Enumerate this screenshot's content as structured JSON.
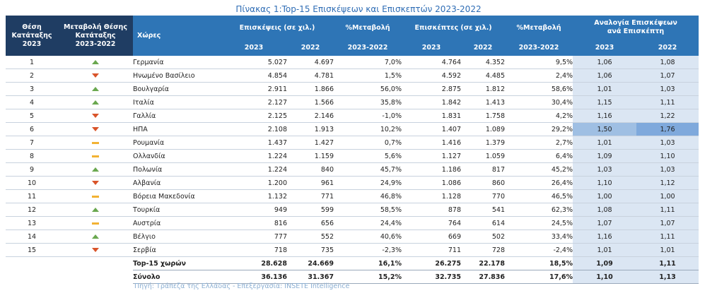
{
  "caption": "Πίνακας 1:Top-15 Επισκέψεων και Επισκεπτών 2023-2022",
  "headers": {
    "rank": "Θέση Κατάταξης 2023",
    "rank_change": "Μεταβολή Θέσης Κατάταξης 2023-2022",
    "country": "Χώρες",
    "visits": "Επισκέψεις (σε χιλ.)",
    "visits_pct": "%Μεταβολή",
    "visitors": "Επισκέπτες (σε χιλ.)",
    "visitors_pct": "%Μεταβολή",
    "ratio": "Αναλογία Επισκέψεων ανά Επισκέπτη",
    "y2023": "2023",
    "y2022": "2022",
    "period": "2023-2022"
  },
  "rows": [
    {
      "rank": "1",
      "trend": "up",
      "country": "Γερμανία",
      "v23": "5.027",
      "v22": "4.697",
      "vp": "7,0%",
      "p23": "4.764",
      "p22": "4.352",
      "pp": "9,5%",
      "r23": "1,06",
      "r22": "1,08"
    },
    {
      "rank": "2",
      "trend": "down",
      "country": "Ηνωμένο Βασίλειο",
      "v23": "4.854",
      "v22": "4.781",
      "vp": "1,5%",
      "p23": "4.592",
      "p22": "4.485",
      "pp": "2,4%",
      "r23": "1,06",
      "r22": "1,07"
    },
    {
      "rank": "3",
      "trend": "up",
      "country": "Βουλγαρία",
      "v23": "2.911",
      "v22": "1.866",
      "vp": "56,0%",
      "p23": "2.875",
      "p22": "1.812",
      "pp": "58,6%",
      "r23": "1,01",
      "r22": "1,03"
    },
    {
      "rank": "4",
      "trend": "up",
      "country": "Ιταλία",
      "v23": "2.127",
      "v22": "1.566",
      "vp": "35,8%",
      "p23": "1.842",
      "p22": "1.413",
      "pp": "30,4%",
      "r23": "1,15",
      "r22": "1,11"
    },
    {
      "rank": "5",
      "trend": "down",
      "country": "Γαλλία",
      "v23": "2.125",
      "v22": "2.146",
      "vp": "-1,0%",
      "p23": "1.831",
      "p22": "1.758",
      "pp": "4,2%",
      "r23": "1,16",
      "r22": "1,22"
    },
    {
      "rank": "6",
      "trend": "down",
      "country": "ΗΠΑ",
      "v23": "2.108",
      "v22": "1.913",
      "vp": "10,2%",
      "p23": "1.407",
      "p22": "1.089",
      "pp": "29,2%",
      "r23": "1,50",
      "r22": "1,76"
    },
    {
      "rank": "7",
      "trend": "flat",
      "country": "Ρουμανία",
      "v23": "1.437",
      "v22": "1.427",
      "vp": "0,7%",
      "p23": "1.416",
      "p22": "1.379",
      "pp": "2,7%",
      "r23": "1,01",
      "r22": "1,03"
    },
    {
      "rank": "8",
      "trend": "flat",
      "country": "Ολλανδία",
      "v23": "1.224",
      "v22": "1.159",
      "vp": "5,6%",
      "p23": "1.127",
      "p22": "1.059",
      "pp": "6,4%",
      "r23": "1,09",
      "r22": "1,10"
    },
    {
      "rank": "9",
      "trend": "up",
      "country": "Πολωνία",
      "v23": "1.224",
      "v22": "840",
      "vp": "45,7%",
      "p23": "1.186",
      "p22": "817",
      "pp": "45,2%",
      "r23": "1,03",
      "r22": "1,03"
    },
    {
      "rank": "10",
      "trend": "down",
      "country": "Αλβανία",
      "v23": "1.200",
      "v22": "961",
      "vp": "24,9%",
      "p23": "1.086",
      "p22": "860",
      "pp": "26,4%",
      "r23": "1,10",
      "r22": "1,12"
    },
    {
      "rank": "11",
      "trend": "flat",
      "country": "Βόρεια Μακεδονία",
      "v23": "1.132",
      "v22": "771",
      "vp": "46,8%",
      "p23": "1.128",
      "p22": "770",
      "pp": "46,5%",
      "r23": "1,00",
      "r22": "1,00"
    },
    {
      "rank": "12",
      "trend": "up",
      "country": "Τουρκία",
      "v23": "949",
      "v22": "599",
      "vp": "58,5%",
      "p23": "878",
      "p22": "541",
      "pp": "62,3%",
      "r23": "1,08",
      "r22": "1,11"
    },
    {
      "rank": "13",
      "trend": "flat",
      "country": "Αυστρία",
      "v23": "816",
      "v22": "656",
      "vp": "24,4%",
      "p23": "764",
      "p22": "614",
      "pp": "24,5%",
      "r23": "1,07",
      "r22": "1,07"
    },
    {
      "rank": "14",
      "trend": "up",
      "country": "Βέλγιο",
      "v23": "777",
      "v22": "552",
      "vp": "40,6%",
      "p23": "669",
      "p22": "502",
      "pp": "33,4%",
      "r23": "1,16",
      "r22": "1,11"
    },
    {
      "rank": "15",
      "trend": "down",
      "country": "Σερβία",
      "v23": "718",
      "v22": "735",
      "vp": "-2,3%",
      "p23": "711",
      "p22": "728",
      "pp": "-2,4%",
      "r23": "1,01",
      "r22": "1,01"
    }
  ],
  "totals": [
    {
      "label": "Top-15 χωρών",
      "v23": "28.628",
      "v22": "24.669",
      "vp": "16,1%",
      "p23": "26.275",
      "p22": "22.178",
      "pp": "18,5%",
      "r23": "1,09",
      "r22": "1,11"
    },
    {
      "label": "Σύνολο",
      "v23": "36.136",
      "v22": "31.367",
      "vp": "15,2%",
      "p23": "32.735",
      "p22": "27.836",
      "pp": "17,6%",
      "r23": "1,10",
      "r22": "1,13"
    }
  ],
  "source": "Πηγή: Τράπεζα της Ελλάδας - Επεξεργασία: INSETE Intelligence",
  "colors": {
    "up": "#6aa84f",
    "down": "#d9542a",
    "flat": "#f2b233",
    "header_dark": "#1f3d63",
    "header_blue": "#2e75b6"
  }
}
